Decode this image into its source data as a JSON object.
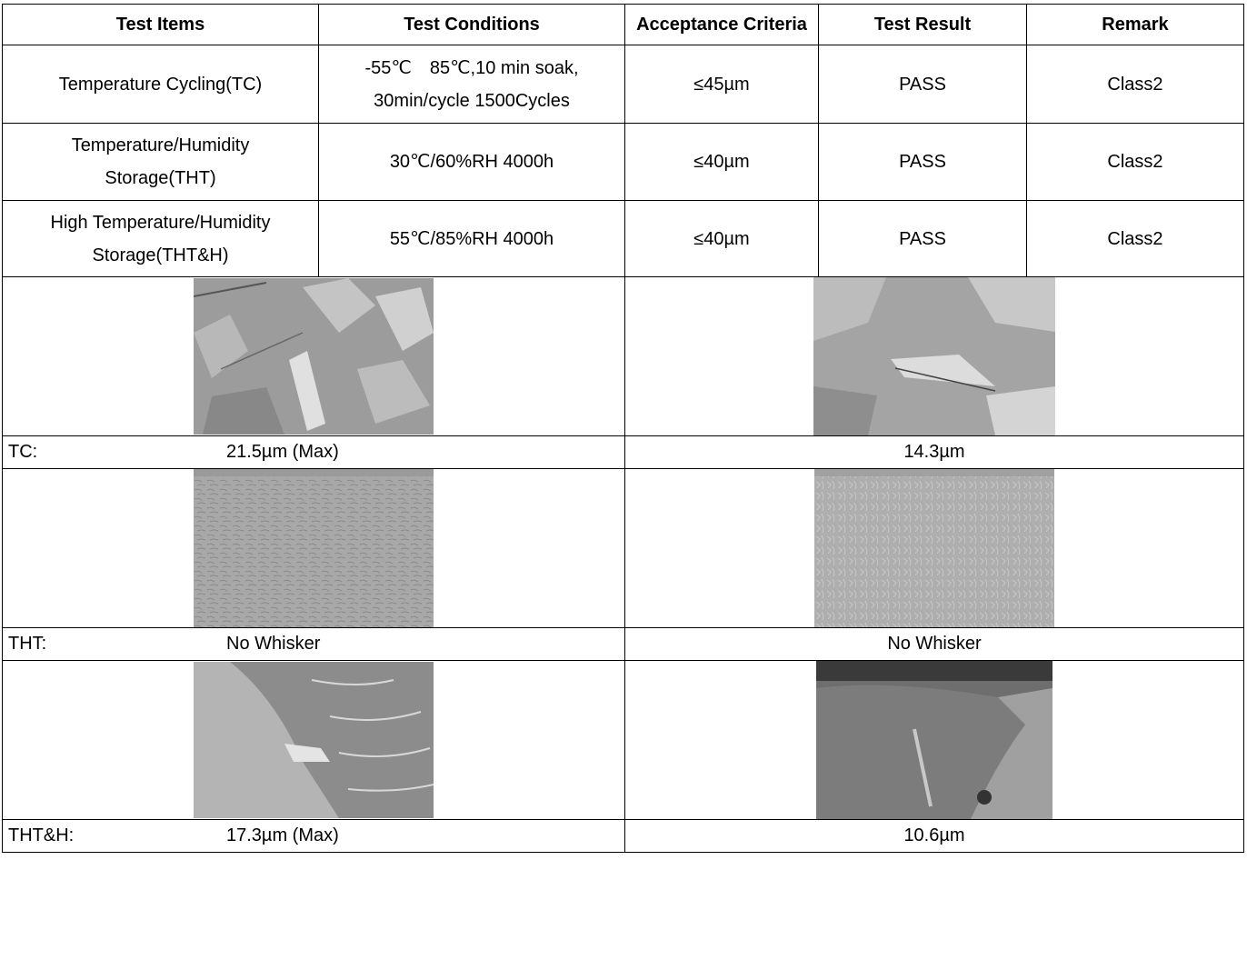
{
  "table": {
    "headers": [
      "Test Items",
      "Test Conditions",
      "Acceptance Criteria",
      "Test Result",
      "Remark"
    ],
    "rows": [
      {
        "item": [
          "Temperature Cycling(TC)"
        ],
        "conditions": [
          "-55℃　85℃,10 min soak,",
          "30min/cycle 1500Cycles"
        ],
        "criteria": "≤45µm",
        "result": "PASS",
        "remark": "Class2"
      },
      {
        "item": [
          "Temperature/Humidity",
          "Storage(THT)"
        ],
        "conditions": [
          "30℃/60%RH 4000h"
        ],
        "criteria": "≤40µm",
        "result": "PASS",
        "remark": "Class2"
      },
      {
        "item": [
          "High Temperature/Humidity",
          "Storage(THT&H)"
        ],
        "conditions": [
          "55℃/85%RH 4000h"
        ],
        "criteria": "≤40µm",
        "result": "PASS",
        "remark": "Class2"
      }
    ]
  },
  "captions": {
    "tc": {
      "label": "TC:",
      "left_value": "21.5µm (Max)",
      "right_value": "14.3µm"
    },
    "tht": {
      "label": "THT:",
      "left_value": "No Whisker",
      "right_value": "No Whisker"
    },
    "thth": {
      "label": "THT&H:",
      "left_value": "17.3µm (Max)",
      "right_value": "10.6µm"
    }
  },
  "images": {
    "tc_left": "sem-micrograph-tc-whisker",
    "tc_right": "sem-micrograph-tc-whisker",
    "tht_left": "sem-micrograph-tht-surface",
    "tht_right": "sem-micrograph-tht-surface",
    "thth_left": "sem-micrograph-thth-whisker",
    "thth_right": "sem-micrograph-thth-whisker"
  }
}
